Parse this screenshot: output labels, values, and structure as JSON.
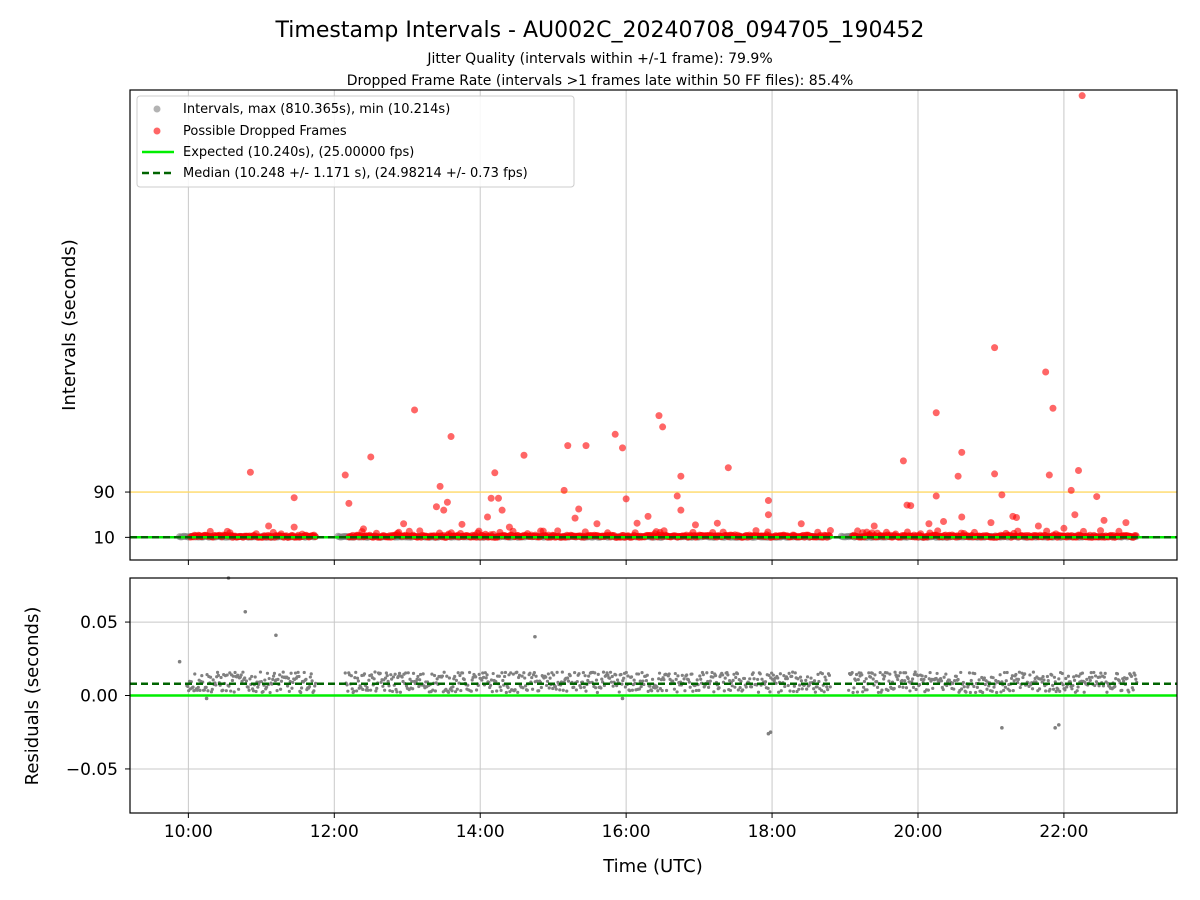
{
  "figure": {
    "title": "Timestamp Intervals - AU002C_20240708_094705_190452",
    "subtitle_1": "Jitter Quality (intervals within +/-1 frame): 79.9%",
    "subtitle_2": "Dropped Frame Rate (intervals >1 frames late within 50 FF files): 85.4%"
  },
  "colors": {
    "interval": "#808080",
    "dropped": "#ff0000",
    "expected": "#00ee00",
    "median": "#006400",
    "threshold": "#ffd966",
    "grid": "#c8c8c8"
  },
  "chart_data": [
    {
      "type": "scatter",
      "panel": "top",
      "ylabel": "Intervals (seconds)",
      "y_tick_labels": [
        "10",
        "90"
      ],
      "y_ticks": [
        10,
        90
      ],
      "ylim": [
        -30,
        800
      ],
      "xlim": [
        9.2,
        23.55
      ],
      "grid": "x only",
      "threshold_line": 90,
      "legend_position": "top-left",
      "legend": [
        {
          "key": "intervals",
          "label": "Intervals, max (810.365s), min (10.214s)",
          "marker": "dot",
          "color": "#808080"
        },
        {
          "key": "dropped",
          "label": "Possible Dropped Frames",
          "marker": "dot",
          "color": "#ff0000"
        },
        {
          "key": "expected",
          "label": "Expected (10.240s), (25.00000 fps)",
          "marker": "solid-line",
          "color": "#00ee00"
        },
        {
          "key": "median",
          "label": "Median (10.248 +/- 1.171 s), (24.98214 +/- 0.73 fps)",
          "marker": "dashed-line",
          "color": "#006400"
        }
      ],
      "expected_value": 10.24,
      "median_value": 10.248,
      "data_segments": [
        [
          9.88,
          11.75
        ],
        [
          12.05,
          18.8
        ],
        [
          18.95,
          23.0
        ]
      ],
      "dropped_points": [
        {
          "x": 22.25,
          "y": 790
        },
        {
          "x": 21.05,
          "y": 345
        },
        {
          "x": 21.75,
          "y": 302
        },
        {
          "x": 21.85,
          "y": 238
        },
        {
          "x": 13.1,
          "y": 235
        },
        {
          "x": 16.45,
          "y": 225
        },
        {
          "x": 20.25,
          "y": 230
        },
        {
          "x": 16.5,
          "y": 205
        },
        {
          "x": 15.85,
          "y": 192
        },
        {
          "x": 13.6,
          "y": 188
        },
        {
          "x": 15.2,
          "y": 172
        },
        {
          "x": 15.45,
          "y": 172
        },
        {
          "x": 15.95,
          "y": 168
        },
        {
          "x": 20.6,
          "y": 160
        },
        {
          "x": 14.6,
          "y": 155
        },
        {
          "x": 12.5,
          "y": 152
        },
        {
          "x": 19.8,
          "y": 145
        },
        {
          "x": 17.4,
          "y": 133
        },
        {
          "x": 22.2,
          "y": 128
        },
        {
          "x": 10.85,
          "y": 125
        },
        {
          "x": 14.2,
          "y": 124
        },
        {
          "x": 21.05,
          "y": 122
        },
        {
          "x": 12.15,
          "y": 120
        },
        {
          "x": 16.75,
          "y": 118
        },
        {
          "x": 20.55,
          "y": 118
        },
        {
          "x": 21.8,
          "y": 120
        },
        {
          "x": 13.45,
          "y": 100
        },
        {
          "x": 15.15,
          "y": 93
        },
        {
          "x": 22.1,
          "y": 93
        },
        {
          "x": 20.25,
          "y": 83
        },
        {
          "x": 21.15,
          "y": 85
        },
        {
          "x": 16.7,
          "y": 83
        },
        {
          "x": 22.45,
          "y": 82
        },
        {
          "x": 11.45,
          "y": 80
        },
        {
          "x": 14.15,
          "y": 79
        },
        {
          "x": 14.25,
          "y": 79
        },
        {
          "x": 16.0,
          "y": 78
        },
        {
          "x": 17.95,
          "y": 75
        },
        {
          "x": 13.55,
          "y": 72
        },
        {
          "x": 12.2,
          "y": 70
        },
        {
          "x": 19.85,
          "y": 67
        },
        {
          "x": 19.9,
          "y": 66
        },
        {
          "x": 13.4,
          "y": 64
        },
        {
          "x": 16.75,
          "y": 58
        },
        {
          "x": 14.3,
          "y": 58
        },
        {
          "x": 15.35,
          "y": 60
        },
        {
          "x": 13.5,
          "y": 58
        },
        {
          "x": 17.95,
          "y": 50
        },
        {
          "x": 20.6,
          "y": 46
        },
        {
          "x": 21.3,
          "y": 47
        },
        {
          "x": 22.15,
          "y": 50
        },
        {
          "x": 14.1,
          "y": 46
        },
        {
          "x": 16.3,
          "y": 47
        },
        {
          "x": 15.3,
          "y": 44
        },
        {
          "x": 21.35,
          "y": 45
        },
        {
          "x": 20.35,
          "y": 38
        },
        {
          "x": 22.55,
          "y": 40
        },
        {
          "x": 11.1,
          "y": 30
        },
        {
          "x": 11.45,
          "y": 28
        },
        {
          "x": 12.95,
          "y": 34
        },
        {
          "x": 13.75,
          "y": 33
        },
        {
          "x": 15.6,
          "y": 34
        },
        {
          "x": 16.15,
          "y": 35
        },
        {
          "x": 16.95,
          "y": 32
        },
        {
          "x": 17.25,
          "y": 35
        },
        {
          "x": 18.4,
          "y": 34
        },
        {
          "x": 19.4,
          "y": 30
        },
        {
          "x": 20.15,
          "y": 34
        },
        {
          "x": 21.0,
          "y": 36
        },
        {
          "x": 21.65,
          "y": 30
        },
        {
          "x": 22.85,
          "y": 36
        },
        {
          "x": 12.4,
          "y": 25
        },
        {
          "x": 14.4,
          "y": 28
        },
        {
          "x": 18.8,
          "y": 22
        },
        {
          "x": 22.0,
          "y": 26
        }
      ]
    },
    {
      "type": "scatter",
      "panel": "bottom",
      "xlabel": "Time (UTC)",
      "ylabel": "Residuals (seconds)",
      "x_tick_labels": [
        "10:00",
        "12:00",
        "14:00",
        "16:00",
        "18:00",
        "20:00",
        "22:00"
      ],
      "x_ticks": [
        10,
        12,
        14,
        16,
        18,
        20,
        22
      ],
      "y_tick_labels": [
        "−0.05",
        "0.00",
        "0.05"
      ],
      "y_ticks": [
        -0.05,
        0.0,
        0.05
      ],
      "ylim": [
        -0.08,
        0.08
      ],
      "xlim": [
        9.2,
        23.55
      ],
      "grid": "both",
      "expected_residual": 0.0,
      "median_residual": 0.008,
      "residual_band": [
        0.002,
        0.016
      ],
      "outliers": [
        {
          "x": 9.88,
          "y": 0.023
        },
        {
          "x": 10.55,
          "y": 0.08
        },
        {
          "x": 10.78,
          "y": 0.057
        },
        {
          "x": 11.2,
          "y": 0.041
        },
        {
          "x": 14.75,
          "y": 0.04
        },
        {
          "x": 15.95,
          "y": -0.002
        },
        {
          "x": 17.95,
          "y": -0.026
        },
        {
          "x": 17.98,
          "y": -0.025
        },
        {
          "x": 21.15,
          "y": -0.022
        },
        {
          "x": 21.88,
          "y": -0.022
        },
        {
          "x": 21.93,
          "y": -0.02
        },
        {
          "x": 10.25,
          "y": -0.002
        }
      ]
    }
  ]
}
